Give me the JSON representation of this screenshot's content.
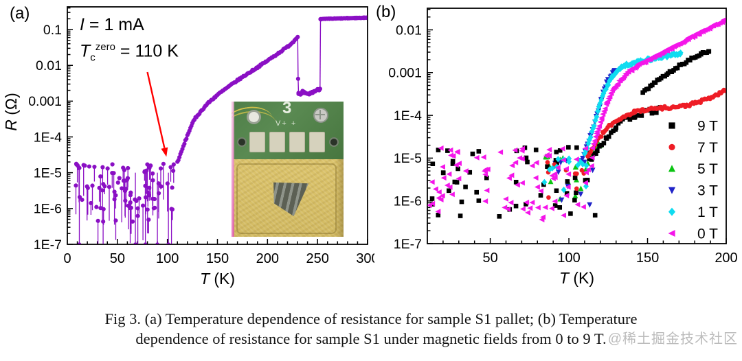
{
  "panel_a": {
    "label": "(a)",
    "annotations": {
      "current": {
        "symbol": "I",
        "rest": " = 1 mA"
      },
      "tc": {
        "symbol": "T",
        "sub": "c",
        "sup": "zero",
        "rest": " = 110 K"
      }
    },
    "inset": {
      "board_number": "3",
      "pad_marking": "V+ +"
    }
  },
  "panel_b": {
    "label": "(b)"
  },
  "caption": {
    "line1": "Fig 3. (a) Temperature dependence of resistance for sample S1 pallet; (b) Temperature",
    "line2": "dependence of resistance for sample S1 under magnetic fields from 0 to 9 T."
  },
  "watermark": {
    "text": "@稀土掘金技术社区"
  },
  "chart_data": [
    {
      "type": "scatter",
      "panel": "a",
      "xlabel": {
        "symbol": "T",
        "unit": " (K)"
      },
      "ylabel": {
        "symbol": "R",
        "unit": " (Ω)"
      },
      "xlim": [
        0,
        300
      ],
      "ylim": [
        1e-07,
        0.43
      ],
      "x_major": [
        0,
        50,
        100,
        150,
        200,
        250,
        300
      ],
      "x_minor_step": 10,
      "y_labels": [
        [
          0.1,
          "0.1"
        ],
        [
          0.01,
          "0.01"
        ],
        [
          0.001,
          "0.001"
        ],
        [
          0.0001,
          "1E-4"
        ],
        [
          1e-05,
          "1E-5"
        ],
        [
          1e-06,
          "1E-6"
        ],
        [
          1e-07,
          "1E-7"
        ]
      ],
      "seed": 7,
      "annotation_arrow": {
        "color": "#ff0000",
        "from": [
          80,
          0.0065
        ],
        "to": [
          99,
          2.8e-05
        ]
      },
      "series": [
        {
          "name": "S1 pellet, I = 1 mA",
          "color": "#8a0fc4",
          "marker": "circle",
          "marker_size": 3.1,
          "segments": [
            {
              "kind": "noise",
              "t_range": [
                8,
                108
              ],
              "r_range": [
                4e-07,
                1.8e-05
              ],
              "n": 95,
              "stems": true,
              "floor": 1e-07,
              "full_drop_t": [
                12,
                68,
                78,
                90,
                101
              ]
            },
            {
              "kind": "curve",
              "step": 1,
              "jitter": 0.02,
              "line": true,
              "points": [
                [
                  110,
                  2e-05
                ],
                [
                  113,
                  3.2e-05
                ],
                [
                  116,
                  5.5e-05
                ],
                [
                  120,
                  0.00011
                ],
                [
                  124,
                  0.00021
                ],
                [
                  128,
                  0.00034
                ],
                [
                  133,
                  0.0005
                ],
                [
                  140,
                  0.00085
                ],
                [
                  150,
                  0.0015
                ],
                [
                  160,
                  0.0024
                ],
                [
                  170,
                  0.0038
                ],
                [
                  180,
                  0.0058
                ],
                [
                  190,
                  0.0088
                ],
                [
                  200,
                  0.0135
                ],
                [
                  210,
                  0.021
                ],
                [
                  220,
                  0.033
                ],
                [
                  226,
                  0.046
                ],
                [
                  230,
                  0.064
                ]
              ]
            },
            {
              "kind": "curve",
              "step": 0,
              "jitter": 0,
              "line": true,
              "points": [
                [
                  230.2,
                  0.062
                ],
                [
                  230.6,
                  0.0042
                ],
                [
                  231,
                  0.0017
                ]
              ]
            },
            {
              "kind": "curve",
              "step": 0.8,
              "jitter": 0.03,
              "line": true,
              "points": [
                [
                  231,
                  0.0017
                ],
                [
                  233,
                  0.00145
                ],
                [
                  235,
                  0.0018
                ],
                [
                  237,
                  0.0017
                ],
                [
                  239,
                  0.00155
                ],
                [
                  242,
                  0.0016
                ],
                [
                  246,
                  0.00185
                ],
                [
                  250,
                  0.00205
                ],
                [
                  252.5,
                  0.0022
                ]
              ]
            },
            {
              "kind": "curve",
              "step": 0,
              "jitter": 0,
              "line": true,
              "points": [
                [
                  252.5,
                  0.0022
                ],
                [
                  253,
                  0.195
                ]
              ]
            },
            {
              "kind": "curve",
              "step": 0.7,
              "jitter": 0.008,
              "line": true,
              "points": [
                [
                  253,
                  0.195
                ],
                [
                  262,
                  0.2
                ],
                [
                  274,
                  0.205
                ],
                [
                  288,
                  0.21
                ],
                [
                  300,
                  0.215
                ]
              ]
            }
          ]
        }
      ]
    },
    {
      "type": "scatter",
      "panel": "b",
      "xlabel": {
        "symbol": "T",
        "unit": " (K)"
      },
      "ylabel": null,
      "xlim": [
        10,
        200
      ],
      "ylim": [
        1e-07,
        0.032
      ],
      "x_major": [
        50,
        100,
        150,
        200
      ],
      "x_minor_step": 10,
      "y_labels": [
        [
          0.01,
          "0.01"
        ],
        [
          0.001,
          "0.001"
        ],
        [
          0.0001,
          "1E-4"
        ],
        [
          1e-05,
          "1E-5"
        ],
        [
          1e-06,
          "1E-6"
        ],
        [
          1e-07,
          "1E-7"
        ]
      ],
      "seed": 13,
      "legend": [
        {
          "label": "9 T",
          "color": "#000000",
          "marker": "square"
        },
        {
          "label": "7 T",
          "color": "#ee1c25",
          "marker": "circle"
        },
        {
          "label": "5 T",
          "color": "#0bc413",
          "marker": "triangle-up"
        },
        {
          "label": "3 T",
          "color": "#2024c8",
          "marker": "triangle-down"
        },
        {
          "label": "1 T",
          "color": "#0fdcf0",
          "marker": "diamond"
        },
        {
          "label": "0 T",
          "color": "#f415e9",
          "marker": "triangle-left"
        }
      ],
      "series": [
        {
          "name": "5 T",
          "color": "#0bc413",
          "marker": "triangle-up",
          "marker_size": 3.6,
          "segments": [
            {
              "kind": "noise",
              "t_range": [
                84,
                120
              ],
              "r_range": [
                8e-07,
                1.1e-05
              ],
              "n": 16
            },
            {
              "kind": "curve",
              "step": 1,
              "jitter": 0.1,
              "points": [
                [
                  112,
                  8e-06
                ],
                [
                  116,
                  1.5e-05
                ],
                [
                  120,
                  2.4e-05
                ]
              ]
            }
          ]
        },
        {
          "name": "3 T",
          "color": "#2024c8",
          "marker": "triangle-down",
          "marker_size": 3.6,
          "segments": [
            {
              "kind": "noise",
              "t_range": [
                88,
                116
              ],
              "r_range": [
                8e-07,
                9e-06
              ],
              "n": 14
            },
            {
              "kind": "curve",
              "step": 0.8,
              "jitter": 0.05,
              "points": [
                [
                  108,
                  8e-06
                ],
                [
                  112,
                  2e-05
                ],
                [
                  115,
                  4.5e-05
                ],
                [
                  118,
                  0.00011
                ],
                [
                  121,
                  0.00026
                ],
                [
                  124,
                  0.00055
                ],
                [
                  127,
                  0.0009
                ],
                [
                  129,
                  0.00115
                ]
              ]
            }
          ]
        },
        {
          "name": "9 T",
          "color": "#000000",
          "marker": "square",
          "marker_size": 3.3,
          "segments": [
            {
              "kind": "noise",
              "t_range": [
                10,
                118
              ],
              "r_range": [
                4e-07,
                1.8e-05
              ],
              "n": 55
            },
            {
              "kind": "curve",
              "step": 1.4,
              "jitter": 0.06,
              "points": [
                [
                  113,
                  9e-06
                ],
                [
                  118,
                  1.6e-05
                ],
                [
                  124,
                  3e-05
                ],
                [
                  130,
                  5.5e-05
                ],
                [
                  136,
                  8e-05
                ],
                [
                  142,
                  0.0001
                ],
                [
                  150,
                  0.00012
                ],
                [
                  158,
                  0.000135
                ]
              ]
            },
            {
              "kind": "curve",
              "step": 1.2,
              "jitter": 0.025,
              "points": [
                [
                  147,
                  0.00034
                ],
                [
                  155,
                  0.0006
                ],
                [
                  163,
                  0.00095
                ],
                [
                  171,
                  0.0015
                ],
                [
                  178,
                  0.0021
                ],
                [
                  184,
                  0.0027
                ],
                [
                  189,
                  0.0032
                ]
              ]
            }
          ]
        },
        {
          "name": "7 T",
          "color": "#ee1c25",
          "marker": "circle",
          "marker_size": 3.3,
          "segments": [
            {
              "kind": "noise",
              "t_range": [
                85,
                112
              ],
              "r_range": [
                1e-06,
                8e-06
              ],
              "n": 10
            },
            {
              "kind": "curve",
              "step": 0.9,
              "jitter": 0.035,
              "points": [
                [
                  112,
                  1.1e-05
                ],
                [
                  117,
                  2.2e-05
                ],
                [
                  122,
                  4e-05
                ],
                [
                  127,
                  6.2e-05
                ],
                [
                  132,
                  8.2e-05
                ],
                [
                  137,
                  0.000102
                ],
                [
                  142,
                  0.00012
                ],
                [
                  147,
                  0.000133
                ],
                [
                  153,
                  0.000143
                ],
                [
                  160,
                  0.00015
                ],
                [
                  167,
                  0.000155
                ],
                [
                  174,
                  0.000168
                ],
                [
                  181,
                  0.000195
                ],
                [
                  188,
                  0.00024
                ],
                [
                  194,
                  0.0003
                ],
                [
                  200,
                  0.00039
                ]
              ]
            }
          ]
        },
        {
          "name": "1 T",
          "color": "#0fdcf0",
          "marker": "diamond",
          "marker_size": 3.6,
          "segments": [
            {
              "kind": "noise",
              "t_range": [
                82,
                112
              ],
              "r_range": [
                8e-07,
                1e-05
              ],
              "n": 14
            },
            {
              "kind": "curve",
              "step": 0.8,
              "jitter": 0.03,
              "points": [
                [
                  110,
                  1.2e-05
                ],
                [
                  113,
                  2.5e-05
                ],
                [
                  116,
                  6e-05
                ],
                [
                  119,
                  0.00015
                ],
                [
                  122,
                  0.00032
                ],
                [
                  125,
                  0.00055
                ],
                [
                  128,
                  0.00085
                ],
                [
                  131,
                  0.00115
                ],
                [
                  135,
                  0.00145
                ],
                [
                  140,
                  0.00165
                ],
                [
                  146,
                  0.00185
                ],
                [
                  153,
                  0.0021
                ],
                [
                  160,
                  0.00235
                ],
                [
                  166,
                  0.0026
                ],
                [
                  171,
                  0.00285
                ]
              ]
            }
          ]
        },
        {
          "name": "0 T",
          "color": "#f415e9",
          "marker": "triangle-left",
          "marker_size": 3.6,
          "segments": [
            {
              "kind": "noise",
              "t_range": [
                10,
                115
              ],
              "r_range": [
                3.5e-07,
                1.8e-05
              ],
              "n": 90
            },
            {
              "kind": "curve",
              "step": 0.7,
              "jitter": 0.025,
              "points": [
                [
                  115,
                  1.8e-05
                ],
                [
                  118,
                  4e-05
                ],
                [
                  121,
                  9e-05
                ],
                [
                  124,
                  0.00019
                ],
                [
                  127,
                  0.00034
                ],
                [
                  130,
                  0.0005
                ],
                [
                  134,
                  0.00075
                ],
                [
                  138,
                  0.00105
                ],
                [
                  144,
                  0.0015
                ],
                [
                  152,
                  0.0021
                ],
                [
                  160,
                  0.003
                ],
                [
                  168,
                  0.0043
                ],
                [
                  176,
                  0.0062
                ],
                [
                  184,
                  0.0088
                ],
                [
                  192,
                  0.0125
                ],
                [
                  200,
                  0.0175
                ]
              ]
            }
          ]
        }
      ]
    }
  ]
}
